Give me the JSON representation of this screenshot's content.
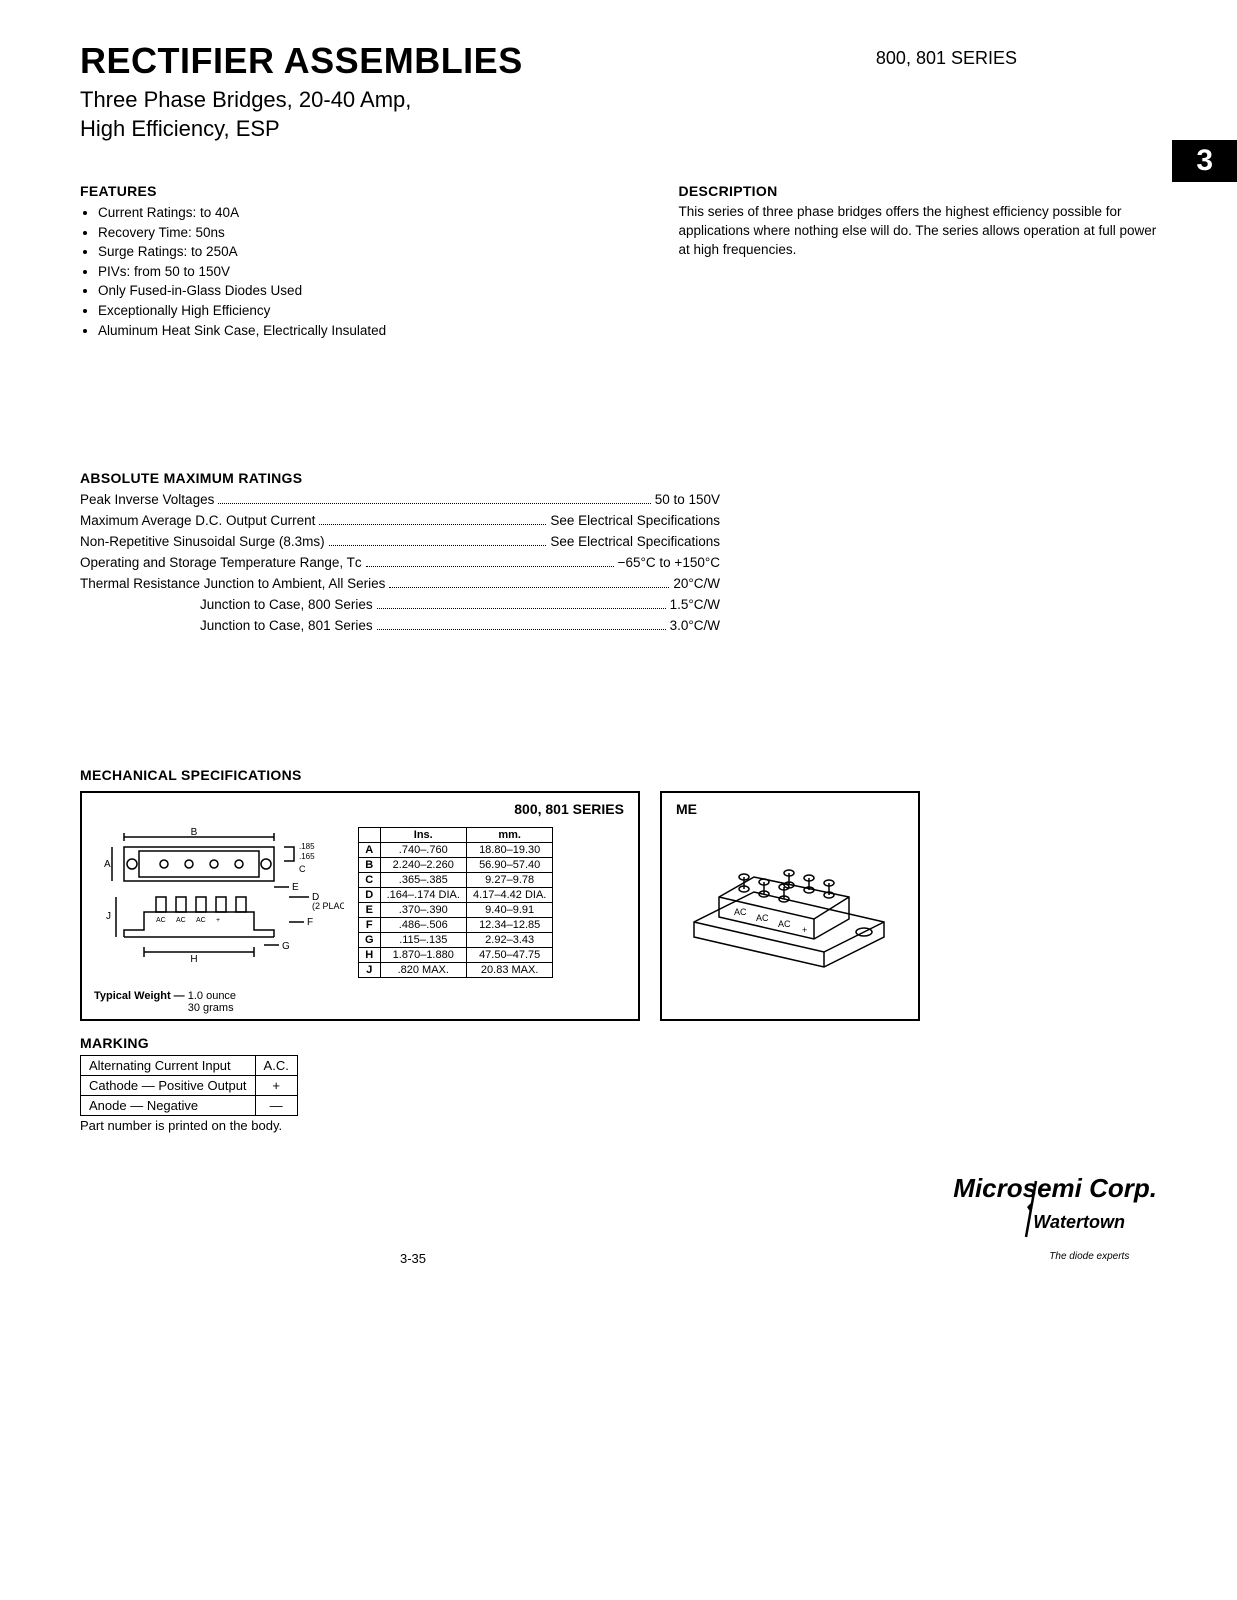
{
  "header": {
    "title": "RECTIFIER ASSEMBLIES",
    "subtitle_line1": "Three Phase Bridges, 20-40 Amp,",
    "subtitle_line2": "High Efficiency, ESP",
    "series": "800, 801 SERIES",
    "tab": "3"
  },
  "features": {
    "heading": "FEATURES",
    "items": [
      "Current Ratings: to 40A",
      "Recovery Time: 50ns",
      "Surge Ratings: to 250A",
      "PIVs: from 50 to 150V",
      "Only Fused-in-Glass Diodes Used",
      "Exceptionally High Efficiency",
      "Aluminum Heat Sink Case, Electrically Insulated"
    ]
  },
  "description": {
    "heading": "DESCRIPTION",
    "text": "This series of three phase bridges offers the highest efficiency possible for applications where nothing else will do. The series allows operation at full power at high frequencies."
  },
  "ratings": {
    "heading": "ABSOLUTE MAXIMUM RATINGS",
    "rows": [
      {
        "label": "Peak Inverse Voltages",
        "value": "50 to 150V",
        "indent": false
      },
      {
        "label": "Maximum Average D.C. Output Current",
        "value": "See Electrical Specifications",
        "indent": false
      },
      {
        "label": "Non-Repetitive Sinusoidal Surge (8.3ms)",
        "value": "See Electrical Specifications",
        "indent": false
      },
      {
        "label": "Operating and Storage Temperature Range, Tᴄ",
        "value": "−65°C to +150°C",
        "indent": false
      },
      {
        "label": "Thermal Resistance Junction to Ambient, All Series",
        "value": "20°C/W",
        "indent": false
      },
      {
        "label": "Junction to Case, 800 Series",
        "value": "1.5°C/W",
        "indent": true
      },
      {
        "label": "Junction to Case, 801 Series",
        "value": "3.0°C/W",
        "indent": true
      }
    ]
  },
  "mechanical": {
    "heading": "MECHANICAL SPECIFICATIONS",
    "box_title": "800, 801 SERIES",
    "me_label": "ME",
    "places": "(2 PLACES)",
    "dim_letters": {
      "A": "A",
      "B": "B",
      "C": "C",
      "D": "D",
      "E": "E",
      "F": "F",
      "G": "G",
      "H": "H",
      "J": "J"
    },
    "terminal_labels": [
      "AC",
      "AC",
      "AC",
      "+"
    ],
    "screw_labels": {
      "top": ".185",
      "bottom": ".165"
    },
    "dims_table": {
      "headers": [
        "",
        "Ins.",
        "mm."
      ],
      "rows": [
        [
          "A",
          ".740–.760",
          "18.80–19.30"
        ],
        [
          "B",
          "2.240–2.260",
          "56.90–57.40"
        ],
        [
          "C",
          ".365–.385",
          "9.27–9.78"
        ],
        [
          "D",
          ".164–.174 DIA.",
          "4.17–4.42 DIA."
        ],
        [
          "E",
          ".370–.390",
          "9.40–9.91"
        ],
        [
          "F",
          ".486–.506",
          "12.34–12.85"
        ],
        [
          "G",
          ".115–.135",
          "2.92–3.43"
        ],
        [
          "H",
          "1.870–1.880",
          "47.50–47.75"
        ],
        [
          "J",
          ".820 MAX.",
          "20.83 MAX."
        ]
      ]
    },
    "weight_label": "Typical Weight —",
    "weight_oz": "1.0 ounce",
    "weight_g": "30 grams",
    "iso_labels": [
      "AC",
      "AC",
      "AC",
      "+"
    ]
  },
  "marking": {
    "heading": "MARKING",
    "rows": [
      [
        "Alternating Current Input",
        "A.C."
      ],
      [
        "Cathode — Positive Output",
        "+"
      ],
      [
        "Anode — Negative",
        "—"
      ]
    ],
    "note": "Part number is printed on the body."
  },
  "footer": {
    "page": "3-35",
    "brand": "Microsemi Corp.",
    "brand_sub1": "Watertown",
    "brand_sub2": "The diode experts"
  }
}
